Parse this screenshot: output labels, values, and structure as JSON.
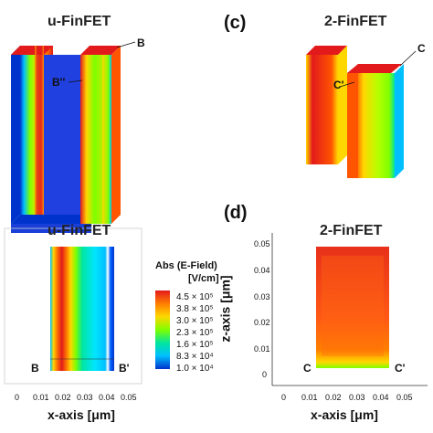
{
  "panels": {
    "top_left": {
      "title": "u-FinFET",
      "marker_b": "B",
      "marker_b2": "B''"
    },
    "top_right": {
      "label": "(c)",
      "title": "2-FinFET",
      "marker_c": "C",
      "marker_c2": "C'"
    },
    "bottom_left": {
      "title": "u-FinFET",
      "marker_b": "B",
      "marker_b2": "B'",
      "x_ticks": [
        "0",
        "0.01",
        "0.02",
        "0.03",
        "0.04",
        "0.05"
      ],
      "x_axis_title": "x-axis [μm]"
    },
    "bottom_right": {
      "label": "(d)",
      "title": "2-FinFET",
      "marker_c": "C",
      "marker_c2": "C'",
      "x_ticks": [
        "0",
        "0.01",
        "0.02",
        "0.03",
        "0.04",
        "0.05"
      ],
      "y_ticks": [
        "0.05",
        "0.04",
        "0.03",
        "0.02",
        "0.01",
        "0"
      ],
      "x_axis_title": "x-axis [μm]",
      "y_axis_title": "z-axis [μm]"
    }
  },
  "colorbar": {
    "title_line1": "Abs (E-Field)",
    "title_line2": "[V/cm]",
    "ticks": [
      "4.5 × 10⁵",
      "3.8 × 10⁵",
      "3.0 × 10⁵",
      "2.3 × 10⁵",
      "1.6 × 10⁵",
      "8.3 × 10⁴",
      "1.0 × 10⁴"
    ],
    "colors": [
      "#e31a1c",
      "#ff7f00",
      "#ffd700",
      "#7fff00",
      "#00e5a0",
      "#00bfff",
      "#0033cc"
    ]
  }
}
